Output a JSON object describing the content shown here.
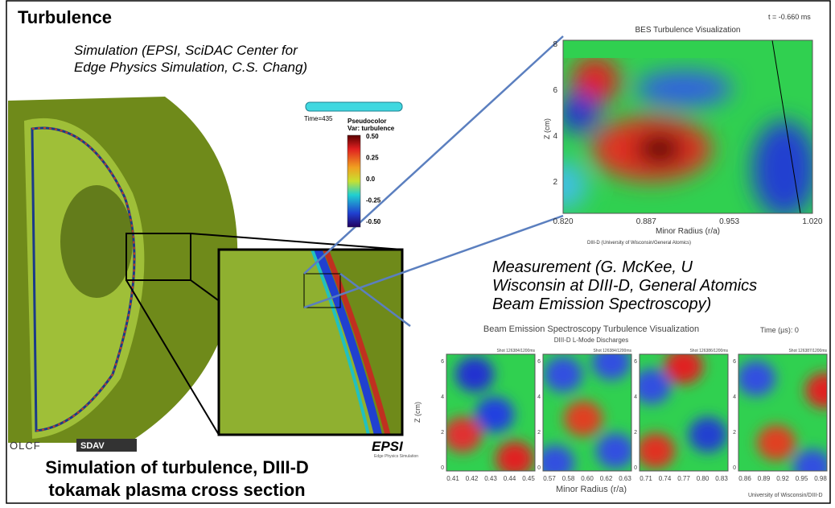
{
  "title": "Turbulence",
  "simulation_credit": [
    "Simulation (EPSI, SciDAC Center for",
    "Edge Physics Simulation, C.S. Chang)"
  ],
  "measurement_credit": [
    "Measurement (G. McKee, U",
    "Wisconsin at DIII-D, General Atomics",
    "Beam Emission Spectroscopy)"
  ],
  "caption": [
    "Simulation of turbulence, DIII-D",
    "tokamak plasma cross section"
  ],
  "colorbar": {
    "time": "Time=435",
    "title": "Pseudocolor",
    "var": "Var: turbulence",
    "ticks": [
      "0.50",
      "0.25",
      "0.0",
      "-0.25",
      "-0.50"
    ]
  },
  "bes_plot": {
    "title": "BES Turbulence Visualization",
    "time": "t = -0.660 ms",
    "ylabel": "Z (cm)",
    "xlabel": "Minor Radius (r/a)",
    "xticks": [
      "0.820",
      "0.887",
      "0.953",
      "1.020"
    ],
    "yticks": [
      "2",
      "4",
      "6",
      "8"
    ],
    "credit": "DIII-D (University of Wisconsin/General Atomics)"
  },
  "multi_plot": {
    "title": "Beam Emission Spectroscopy Turbulence Visualization",
    "subtitle": "DIII-D L-Mode Discharges",
    "time": "Time (µs): 0",
    "ylabel": "Z (cm)",
    "xlabel": "Minor Radius (r/a)",
    "credit": "University of Wisconsin/DIII-D",
    "yticks": [
      "0",
      "2",
      "4",
      "6"
    ],
    "panels": [
      {
        "label": "Shot 126384/1200ms",
        "xticks": [
          "0.41",
          "0.42",
          "0.43",
          "0.44",
          "0.45"
        ]
      },
      {
        "label": "Shot 126384/1200ms",
        "xticks": [
          "0.57",
          "0.58",
          "0.60",
          "0.62",
          "0.63"
        ]
      },
      {
        "label": "Shot 126386/1200ms",
        "xticks": [
          "0.71",
          "0.74",
          "0.77",
          "0.80",
          "0.83"
        ]
      },
      {
        "label": "Shot 126387/1200ms",
        "xticks": [
          "0.86",
          "0.89",
          "0.92",
          "0.95",
          "0.98"
        ]
      }
    ]
  },
  "logos": {
    "olcf": "OLCF",
    "sdav": "SDAV",
    "epsi": "EPSI",
    "epsi_sub": "Edge Physics Simulation"
  }
}
